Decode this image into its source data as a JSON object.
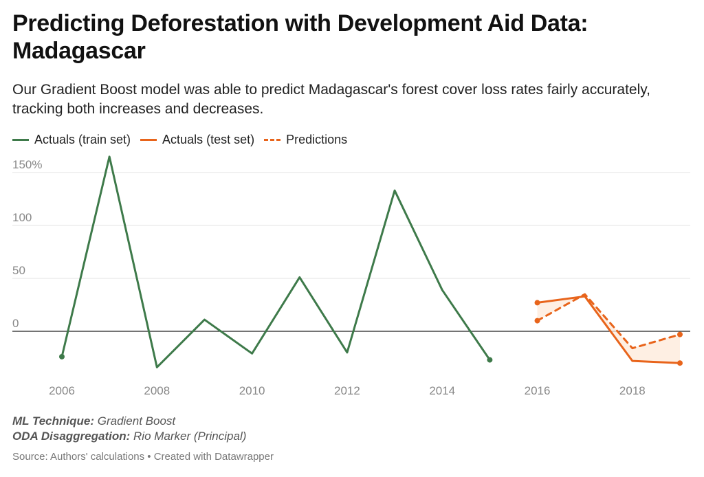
{
  "title": "Predicting Deforestation with Development Aid Data: Madagascar",
  "subtitle": "Our Gradient Boost model was able to predict Madagascar's forest cover loss rates fairly accurately, tracking both increases and decreases.",
  "legend": {
    "train": "Actuals (train set)",
    "test": "Actuals (test set)",
    "pred": "Predictions"
  },
  "notes": {
    "technique_label": "ML Technique:",
    "technique_value": "Gradient Boost",
    "oda_label": "ODA Disaggregation:",
    "oda_value": "Rio Marker (Principal)"
  },
  "source": "Source: Authors' calculations • Created with Datawrapper",
  "colors": {
    "train": "#3e7a4a",
    "test": "#e8641b",
    "grid": "#e3e3e3",
    "zero": "#222222",
    "axis_text": "#888888",
    "band": "#fde9da"
  },
  "chart_data": {
    "type": "line",
    "title": "Predicting Deforestation with Development Aid Data: Madagascar",
    "ylabel": "",
    "xlabel": "",
    "xlim": [
      2006,
      2019
    ],
    "ylim": [
      -35,
      160
    ],
    "y_ticks": [
      0,
      50,
      100,
      150
    ],
    "y_tick_labels": [
      "0",
      "50",
      "100",
      "150%"
    ],
    "x_ticks": [
      2006,
      2008,
      2010,
      2012,
      2014,
      2016,
      2018
    ],
    "x_tick_labels": [
      "2006",
      "2008",
      "2010",
      "2012",
      "2014",
      "2016",
      "2018"
    ],
    "series": [
      {
        "name": "Actuals (train set)",
        "style": "solid",
        "x": [
          2006,
          2007,
          2008,
          2009,
          2010,
          2011,
          2012,
          2013,
          2014,
          2015
        ],
        "values": [
          -24,
          165,
          -34,
          11,
          -21,
          51,
          -20,
          133,
          39,
          -27
        ]
      },
      {
        "name": "Actuals (test set)",
        "style": "solid",
        "x": [
          2016,
          2017,
          2018,
          2019
        ],
        "values": [
          27,
          33,
          -28,
          -30
        ]
      },
      {
        "name": "Predictions",
        "style": "dashed",
        "x": [
          2016,
          2017,
          2018,
          2019
        ],
        "values": [
          10,
          35,
          -16,
          -3
        ]
      }
    ]
  }
}
